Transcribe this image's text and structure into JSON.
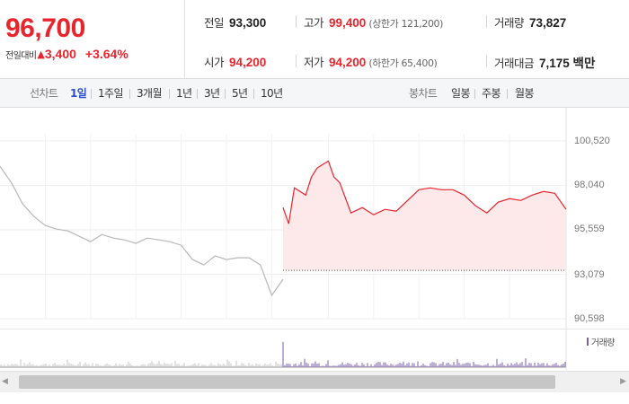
{
  "quote": {
    "price": "96,700",
    "change_label": "전일대비",
    "change_arrow": "▲",
    "change_amount": "3,400",
    "change_percent": "+3.64%",
    "prev_close_label": "전일",
    "prev_close": "93,300",
    "high_label": "고가",
    "high": "99,400",
    "upper_limit": "(상한가 121,200)",
    "volume_label": "거래량",
    "volume": "73,827",
    "open_label": "시가",
    "open": "94,200",
    "low_label": "저가",
    "low": "94,200",
    "lower_limit": "(하한가 65,400)",
    "trade_value_label": "거래대금",
    "trade_value": "7,175 백만"
  },
  "toolbar": {
    "line_chart_label": "선차트",
    "periods": [
      "1일",
      "1주일",
      "3개월",
      "1년",
      "3년",
      "5년",
      "10년"
    ],
    "active_period": "1일",
    "candle_chart_label": "봉차트",
    "candle_periods": [
      "일봉",
      "주봉",
      "월봉"
    ]
  },
  "colors": {
    "up": "#e8242c",
    "active_tab": "#2a4fc7",
    "prev_day_line": "#b8b8b8",
    "area_fill": "#fde8ea",
    "volume_bar": "#7a5ea8"
  },
  "chart_data": {
    "type": "line",
    "title": "",
    "y_ticks": [
      "100,520",
      "98,040",
      "95,559",
      "93,079",
      "90,598"
    ],
    "ylim": [
      90598,
      100520
    ],
    "baseline": 93300,
    "legend": "top-right",
    "series": [
      {
        "role": "previous-day",
        "x": [
          0,
          2,
          4,
          6,
          8,
          10,
          12,
          14,
          16,
          18,
          20,
          22,
          24,
          26,
          28,
          30,
          32,
          34,
          36,
          38,
          40,
          42,
          44,
          46,
          48,
          50
        ],
        "y": [
          99100,
          98200,
          97000,
          96300,
          95800,
          95600,
          95500,
          95200,
          94900,
          95300,
          95100,
          95000,
          94800,
          95100,
          95000,
          94900,
          94700,
          93900,
          93600,
          94100,
          93900,
          94000,
          94000,
          93600,
          91900,
          92800
        ]
      },
      {
        "role": "today",
        "x": [
          50,
          51,
          52,
          53,
          54,
          55,
          56,
          57,
          58,
          59,
          60,
          62,
          64,
          66,
          68,
          70,
          72,
          74,
          76,
          78,
          80,
          82,
          84,
          86,
          88,
          90,
          92,
          94,
          96,
          98,
          100
        ],
        "y": [
          96800,
          95900,
          97900,
          97700,
          97500,
          98500,
          99000,
          99200,
          99400,
          98500,
          98200,
          96500,
          96800,
          96400,
          96700,
          96600,
          97200,
          97800,
          97900,
          97800,
          97800,
          97500,
          96900,
          96500,
          97100,
          97300,
          97200,
          97500,
          97700,
          97600,
          96700
        ]
      }
    ],
    "volume_label": "거래량"
  }
}
